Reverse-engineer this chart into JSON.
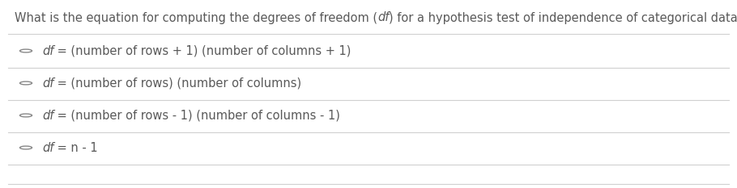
{
  "background_color": "#ffffff",
  "text_color": "#595959",
  "question_prefix": "What is the equation for computing the degrees of freedom (",
  "question_df": "df",
  "question_suffix": ") for a hypothesis test of independence of categorical data?",
  "options": [
    [
      " = (number of rows + 1) (number of columns + 1)",
      "df"
    ],
    [
      " = (number of rows) (number of columns)",
      "df"
    ],
    [
      " = (number of rows - 1) (number of columns - 1)",
      "df"
    ],
    [
      " = n - 1",
      "df"
    ]
  ],
  "line_color": "#d0d0d0",
  "circle_color": "#888888",
  "question_fontsize": 10.5,
  "option_fontsize": 10.5,
  "figsize": [
    9.1,
    2.33
  ],
  "dpi": 100
}
